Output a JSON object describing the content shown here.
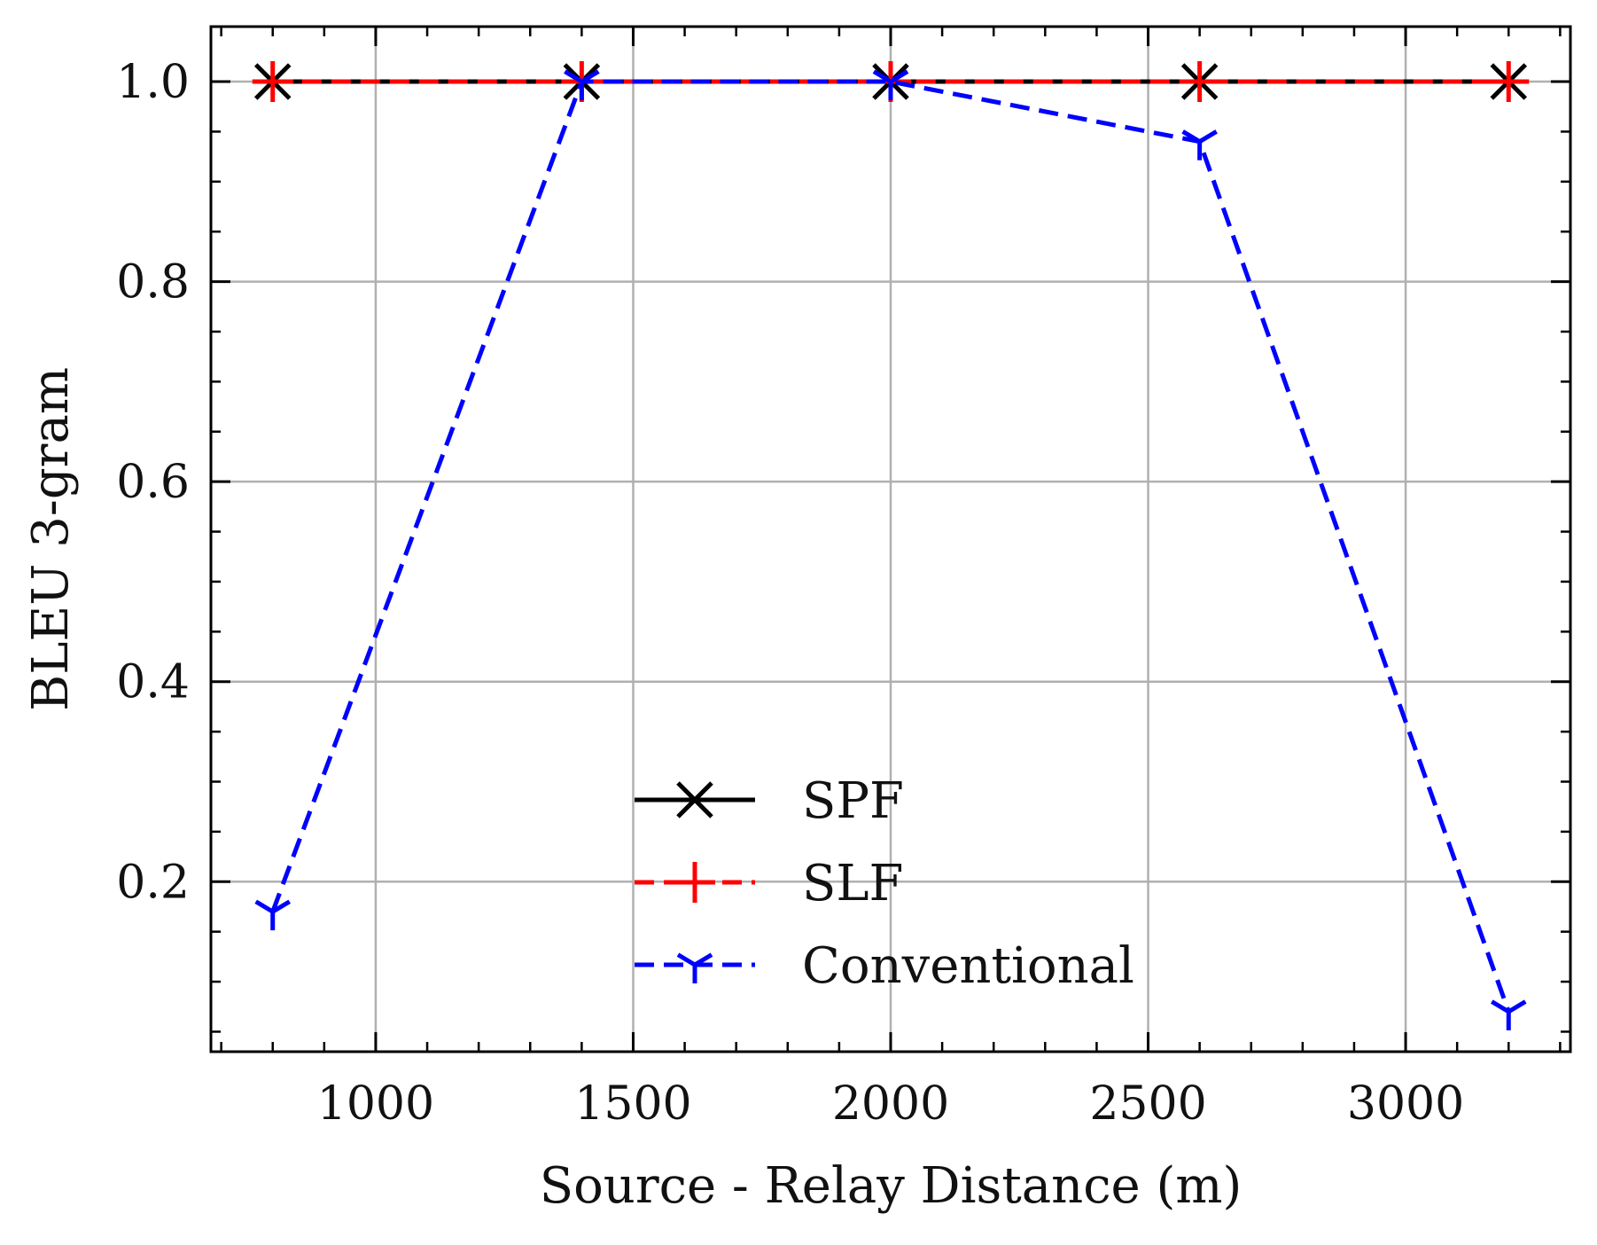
{
  "chart_data": {
    "type": "line",
    "title": "",
    "xlabel": "Source - Relay Distance (m)",
    "ylabel": "BLEU 3-gram",
    "xlim": [
      680,
      3320
    ],
    "ylim": [
      0.03,
      1.055
    ],
    "x_ticks": [
      1000,
      1500,
      2000,
      2500,
      3000
    ],
    "x_tick_labels": [
      "1000",
      "1500",
      "2000",
      "2500",
      "3000"
    ],
    "y_ticks": [
      0.2,
      0.4,
      0.6,
      0.8,
      1.0
    ],
    "y_tick_labels": [
      "0.2",
      "0.4",
      "0.6",
      "0.8",
      "1.0"
    ],
    "grid": true,
    "legend_position": "lower-center",
    "x": [
      800,
      1400,
      2000,
      2600,
      3200
    ],
    "series": [
      {
        "name": "SPF",
        "values": [
          1.0,
          1.0,
          1.0,
          1.0,
          1.0
        ],
        "color": "#000000",
        "line_style": "solid",
        "marker": "x"
      },
      {
        "name": "SLF",
        "values": [
          1.0,
          1.0,
          1.0,
          1.0,
          1.0
        ],
        "color": "#ff0000",
        "line_style": "dashed",
        "marker": "+"
      },
      {
        "name": "Conventional",
        "values": [
          0.17,
          1.0,
          1.0,
          0.94,
          0.07
        ],
        "color": "#0000ff",
        "line_style": "dashed",
        "marker": "tri_down"
      }
    ]
  }
}
